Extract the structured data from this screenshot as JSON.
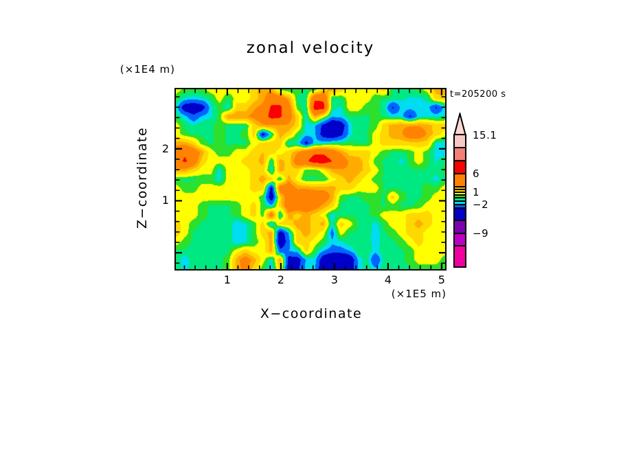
{
  "title": "zonal velocity",
  "time_label": "t=205200 s",
  "axes": {
    "x": {
      "label": "X−coordinate",
      "unit": "(×1E5 m)"
    },
    "z": {
      "label": "Z−coordinate",
      "unit": "(×1E4 m)"
    }
  },
  "chart_data": {
    "type": "filled_contour",
    "title": "zonal velocity",
    "time": "t=205200 s",
    "x_axis": {
      "label": "X−coordinate",
      "unit": "(×1E5 m)",
      "tick_values": [
        "1",
        "2",
        "3",
        "4",
        "5"
      ],
      "major_fracs": [
        0.191,
        0.39,
        0.589,
        0.788,
        0.987
      ],
      "minor_fracs": [
        0.0318,
        0.0716,
        0.1114,
        0.1512,
        0.2308,
        0.2706,
        0.3104,
        0.3502,
        0.4298,
        0.4696,
        0.5094,
        0.5492,
        0.6288,
        0.6686,
        0.7084,
        0.7482,
        0.8278,
        0.8676,
        0.9074,
        0.9472
      ],
      "range": [
        0,
        5.05
      ]
    },
    "z_axis": {
      "label": "Z−coordinate",
      "unit": "(×1E4 m)",
      "tick_values": [
        "2",
        "1",
        ""
      ],
      "major_fracs": [
        0.331,
        0.62,
        0.909
      ],
      "minor_fracs": [
        0.042,
        0.0998,
        0.1576,
        0.2154,
        0.2732,
        0.3888,
        0.4466,
        0.5044,
        0.5622,
        0.6778,
        0.7356,
        0.7934,
        0.8512,
        0.9668
      ],
      "range_top_to_bottom": [
        3.1,
        -0.3
      ]
    },
    "colorbar": {
      "tick_labels": [
        "15.1",
        "6",
        "1",
        "−2",
        "−9"
      ],
      "tip_color": "#FAD8D4",
      "segments_top_to_bottom": [
        {
          "color": "#F8C8C4",
          "h": 18,
          "label": "15.1"
        },
        {
          "color": "#F28078",
          "h": 19
        },
        {
          "color": "#FA0000",
          "h": 19
        },
        {
          "color": "#FF8200",
          "h": 19,
          "label": "6"
        },
        {
          "color": "#FFAC00",
          "h": 4
        },
        {
          "color": "#FFD800",
          "h": 4
        },
        {
          "color": "#FFFF00",
          "h": 4,
          "label": "1"
        },
        {
          "color": "#2CE02C",
          "h": 4
        },
        {
          "color": "#00E882",
          "h": 5
        },
        {
          "color": "#00DCF0",
          "h": 5
        },
        {
          "color": "#0064FF",
          "h": 5,
          "label": "−2"
        },
        {
          "color": "#0000C8",
          "h": 18
        },
        {
          "color": "#7C00B0",
          "h": 19
        },
        {
          "color": "#BC00C4",
          "h": 18,
          "label": "−9"
        },
        {
          "color": "#F000A0",
          "h": 30
        }
      ]
    },
    "bin_edges": [
      -13.1,
      -12,
      -11,
      -9,
      -3.5,
      -2,
      -1.3,
      -0.7,
      0,
      1,
      2,
      3,
      6,
      9,
      12,
      15.1
    ],
    "bin_colors": [
      "#F000A0",
      "#BC00C4",
      "#7C00B0",
      "#0000C8",
      "#0064FF",
      "#00DCF0",
      "#00E882",
      "#2CE02C",
      "#FFFF00",
      "#FFD800",
      "#FFAC00",
      "#FF8200",
      "#FA0000",
      "#F28078",
      "#F8C8C4"
    ],
    "grid_cols": 32,
    "grid_rows": 21,
    "values": [
      [
        0.5,
        -0.3,
        -0.5,
        -0.3,
        0.5,
        0.5,
        0.5,
        0.5,
        0.5,
        1.5,
        2.8,
        2.5,
        -0.3,
        -0.8,
        -0.5,
        -0.8,
        -0.5,
        1.5,
        2.5,
        1.5,
        0.5,
        0.5,
        0.5,
        0.5,
        1.5,
        -0.8,
        -0.8,
        -0.8,
        -0.5,
        0.5,
        2.5,
        2.8
      ],
      [
        -0.5,
        -1.4,
        -1.6,
        -1.4,
        -0.8,
        0.5,
        -0.8,
        0.5,
        0.5,
        1.5,
        2.5,
        4.5,
        4.5,
        2.5,
        -0.8,
        -0.8,
        5.5,
        5.5,
        -0.8,
        -0.8,
        0.5,
        0.5,
        0.5,
        -0.5,
        -0.8,
        -0.8,
        -1.2,
        -1.4,
        -1.4,
        -1.2,
        1.5,
        1.5
      ],
      [
        -1.2,
        -5,
        -5.5,
        -4.5,
        -1.5,
        -0.5,
        -1.6,
        1.5,
        1.5,
        2.8,
        3.5,
        6.5,
        6.5,
        4,
        -0.5,
        -1.2,
        7.5,
        7,
        -1,
        -1.4,
        0.5,
        0.5,
        -0.5,
        -0.5,
        -1,
        -3.8,
        -1.6,
        -1.6,
        -1.4,
        -1.4,
        -3.8,
        -1.6
      ],
      [
        -0.8,
        -1.6,
        -3,
        -1.8,
        -1.4,
        -0.5,
        2.8,
        2.8,
        2.8,
        3.5,
        4.5,
        7,
        6.5,
        4,
        1.5,
        -1.4,
        2.5,
        0.5,
        -1.8,
        -1.6,
        -0.8,
        -0.8,
        -0.8,
        -0.5,
        -0.8,
        -1.4,
        -1.6,
        -3.8,
        -1.6,
        -1.4,
        -1.4,
        -1.2
      ],
      [
        0.5,
        -0.8,
        -1.2,
        -0.8,
        -0.8,
        -0.5,
        -0.8,
        -0.8,
        -0.8,
        1.5,
        2.8,
        2.8,
        2.8,
        2.8,
        1.5,
        -1.6,
        -1.8,
        -4,
        -6,
        -5,
        -1.6,
        -0.8,
        -0.8,
        -0.5,
        1.5,
        2.5,
        2.8,
        2.8,
        2.8,
        2.5,
        1.5,
        1.5
      ],
      [
        0.5,
        -0.5,
        -0.8,
        -0.8,
        -0.8,
        -0.5,
        -0.8,
        -0.8,
        -0.5,
        1.5,
        -4.5,
        -1,
        2.5,
        1.5,
        -0.5,
        -1.6,
        -1.8,
        -4.5,
        -5.5,
        -4,
        -1.6,
        -0.8,
        -0.8,
        0.5,
        1.5,
        2.5,
        2.8,
        4.5,
        4.5,
        2.8,
        1.5,
        0.5
      ],
      [
        2.5,
        2.5,
        1.5,
        -0.5,
        -0.8,
        -0.5,
        -0.8,
        -0.8,
        -0.8,
        0.5,
        1.5,
        1.5,
        1.5,
        -1.4,
        -1.2,
        -4.2,
        -1.6,
        -1.4,
        -0.8,
        -0.8,
        -0.5,
        -0.8,
        -0.8,
        0.5,
        1.5,
        1.5,
        1.5,
        1.5,
        1.5,
        1.5,
        -1.4,
        -1.6
      ],
      [
        4.5,
        5.5,
        4.5,
        2.5,
        0.5,
        -0.5,
        -0.5,
        0.5,
        0.5,
        1.5,
        2,
        1.5,
        0.5,
        1.5,
        2.8,
        4.5,
        5.5,
        5.5,
        4.5,
        2.8,
        1.5,
        1.5,
        1.5,
        0.5,
        -0.5,
        -0.8,
        -0.8,
        -0.5,
        0.5,
        -0.5,
        -1.6,
        -1.6
      ],
      [
        4.5,
        6.5,
        4.5,
        1.5,
        0.5,
        0.5,
        0.5,
        0.5,
        1.5,
        1.5,
        2.5,
        -1,
        2.5,
        1.5,
        4.5,
        5.5,
        7.5,
        7.5,
        6,
        4.5,
        2.8,
        2.5,
        1.5,
        -0.5,
        -0.8,
        -0.8,
        -1.6,
        -0.5,
        0.5,
        -0.5,
        -1.4,
        -0.8
      ],
      [
        2.5,
        2.5,
        1.5,
        0.5,
        0.5,
        -1.6,
        0.5,
        0.5,
        0.5,
        1.5,
        1.5,
        -1.5,
        2.5,
        1.5,
        1.5,
        -0.5,
        -0.5,
        0.5,
        2.5,
        2.8,
        2.8,
        2.5,
        1.5,
        0.5,
        -0.8,
        -0.8,
        -0.8,
        -0.8,
        -0.8,
        -0.8,
        -1,
        -0.5
      ],
      [
        -0.8,
        -0.8,
        -0.8,
        -0.5,
        -0.5,
        -1.6,
        0.5,
        0.5,
        0.5,
        1.5,
        2.5,
        1.5,
        -1,
        2.5,
        0.5,
        -0.8,
        -0.8,
        -0.8,
        0.5,
        1.5,
        2.5,
        1.5,
        0.5,
        -0.5,
        -0.8,
        -0.8,
        -0.8,
        -0.8,
        -0.8,
        -0.8,
        -1.6,
        -0.8
      ],
      [
        0.5,
        -0.5,
        -0.5,
        0.5,
        0.5,
        0.5,
        0.5,
        0.5,
        0.5,
        1.5,
        1.5,
        -4.5,
        4.5,
        4.5,
        2.8,
        2.8,
        2.5,
        2.5,
        2.5,
        1.5,
        1.5,
        0.5,
        0.5,
        0.5,
        -0.8,
        -0.8,
        -0.8,
        -0.8,
        -0.8,
        -0.5,
        -0.5,
        0.5
      ],
      [
        0.5,
        0.5,
        0.5,
        0.5,
        0.5,
        0.5,
        0.5,
        0.5,
        0.5,
        0.5,
        -0.5,
        -5,
        1.5,
        4.5,
        4.5,
        5,
        5,
        4.5,
        2.5,
        -0.5,
        -0.8,
        -0.8,
        -0.5,
        -0.5,
        -0.8,
        1.5,
        -0.5,
        -0.8,
        -0.8,
        -0.5,
        0.5,
        0.5
      ],
      [
        0.5,
        0.5,
        0.5,
        -0.5,
        -0.8,
        -0.8,
        -0.8,
        -0.5,
        0.5,
        1.5,
        -0.5,
        -1.6,
        1.5,
        4.5,
        4.5,
        4.5,
        4,
        2.5,
        1.5,
        -0.8,
        -0.8,
        -0.8,
        -0.8,
        -0.5,
        -0.8,
        -0.5,
        -0.8,
        -0.8,
        -0.5,
        0.5,
        0.5,
        0.5
      ],
      [
        0.5,
        0.5,
        0.5,
        -0.5,
        -0.8,
        -0.8,
        -0.8,
        -0.5,
        0.5,
        1.5,
        -0.5,
        4.5,
        -1.5,
        2.5,
        1.5,
        2.5,
        1.5,
        0.5,
        -1.6,
        -0.8,
        -0.8,
        -0.8,
        -0.8,
        -0.5,
        0.5,
        0.5,
        0.5,
        1.5,
        1.5,
        1.5,
        0.5,
        0.5
      ],
      [
        1.5,
        0.5,
        -0.5,
        -0.8,
        -0.8,
        -0.8,
        -0.8,
        -1.8,
        -1.4,
        -0.5,
        1.5,
        -2,
        1.5,
        1.5,
        2.5,
        2.5,
        1.5,
        2.5,
        -1.5,
        1.5,
        0.5,
        -0.8,
        -0.8,
        -1.6,
        -0.5,
        0.5,
        0.5,
        1.5,
        2.5,
        1.5,
        0.5,
        0.5
      ],
      [
        1.5,
        0.5,
        -0.8,
        -0.8,
        -0.8,
        -0.8,
        -0.8,
        -1.8,
        -1.4,
        -0.5,
        1.5,
        2.5,
        -5,
        -1.8,
        1.5,
        2.5,
        1.5,
        0.5,
        -2.6,
        0.5,
        -0.8,
        -0.8,
        -0.8,
        -1.8,
        -0.8,
        -0.5,
        0.5,
        1.5,
        1.5,
        0.5,
        0.5,
        0.5
      ],
      [
        0.5,
        -0.5,
        -0.8,
        -0.8,
        -0.8,
        -0.8,
        -0.8,
        -1.8,
        -1.4,
        -0.5,
        0.5,
        2.5,
        -5.5,
        -2.5,
        1.5,
        1.5,
        0.5,
        -0.5,
        -1.8,
        -1.4,
        -0.8,
        -0.8,
        -0.8,
        -1.8,
        -0.8,
        -0.8,
        -0.5,
        0.5,
        1.5,
        0.5,
        0.5,
        0.5
      ],
      [
        -0.8,
        -0.8,
        -0.8,
        -0.8,
        -0.8,
        -0.8,
        -0.8,
        0.5,
        1.5,
        0.5,
        0.5,
        2.5,
        -3,
        -2,
        -1.5,
        1.5,
        -0.5,
        -2,
        -2.5,
        -2.5,
        -2,
        -0.8,
        -0.8,
        -1.6,
        -0.8,
        -0.8,
        -0.8,
        -0.5,
        0.5,
        0.5,
        0.5,
        0.5
      ],
      [
        -0.8,
        -1.8,
        -0.8,
        -0.8,
        -0.8,
        -0.8,
        -0.5,
        2.5,
        4,
        2.5,
        0.5,
        -1.5,
        2.5,
        -4.5,
        -4.5,
        -1.8,
        -1.5,
        -5,
        -7,
        -7,
        -5.5,
        -1.8,
        -0.8,
        -3.5,
        -0.8,
        -0.8,
        -0.8,
        -0.5,
        0.5,
        0.5,
        0.5,
        -0.5
      ],
      [
        -0.8,
        -1.6,
        -0.8,
        -0.8,
        -0.8,
        -0.8,
        -0.5,
        2.5,
        3.5,
        1.5,
        -0.5,
        -1.8,
        1.5,
        -4.5,
        -4,
        -1.6,
        -1.8,
        -5.5,
        -7,
        -6.5,
        -5,
        -1.8,
        -0.8,
        -1.8,
        -0.8,
        -0.8,
        -0.8,
        -0.8,
        -0.5,
        -0.5,
        -0.5,
        -0.5
      ]
    ]
  }
}
